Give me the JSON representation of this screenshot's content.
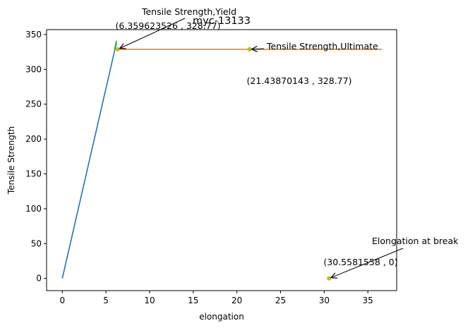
{
  "chart_data": {
    "type": "line",
    "title": "myc-13133",
    "xlabel": "elongation",
    "ylabel": "Tensile Strength",
    "xlim": [
      -1.8,
      38.3
    ],
    "ylim": [
      -17.5,
      357
    ],
    "xticks": [
      0,
      5,
      10,
      15,
      20,
      25,
      30,
      35
    ],
    "xtick_labels": [
      "0",
      "5",
      "10",
      "15",
      "20",
      "25",
      "30",
      "35"
    ],
    "yticks": [
      0,
      50,
      100,
      150,
      200,
      250,
      300,
      350
    ],
    "ytick_labels": [
      "0",
      "50",
      "100",
      "150",
      "200",
      "250",
      "300",
      "350"
    ],
    "grid": false,
    "series": [
      {
        "color": "#1f77b4",
        "x": [
          0,
          6.2
        ],
        "y": [
          0,
          338
        ]
      },
      {
        "color": "#ff7f0e",
        "x": [
          6.0,
          36.6
        ],
        "y": [
          328.77,
          328.77
        ]
      },
      {
        "color": "#2ca02c",
        "x": [
          6.0,
          6.2
        ],
        "y": [
          328.77,
          341
        ]
      }
    ],
    "points": [
      {
        "name": "yield",
        "x": 6.359623526,
        "y": 328.77,
        "color": "#bcbd22"
      },
      {
        "name": "ultimate",
        "x": 21.43870143,
        "y": 328.77,
        "color": "#bcbd22"
      },
      {
        "name": "break",
        "x": 30.5581558,
        "y": 0,
        "color": "#bcbd22"
      }
    ],
    "annotations": [
      {
        "name": "yield",
        "label": "Tensile Strength,Yield",
        "value": "(6.359623526 , 328.77)",
        "x": 6.359623526,
        "y": 328.77
      },
      {
        "name": "ultimate",
        "label": "Tensile Strength,Ultimate",
        "value": "(21.43870143 , 328.77)",
        "x": 21.43870143,
        "y": 328.77
      },
      {
        "name": "break",
        "label": "Elongation at break",
        "value": "(30.5581558 , 0)",
        "x": 30.5581558,
        "y": 0
      }
    ]
  }
}
